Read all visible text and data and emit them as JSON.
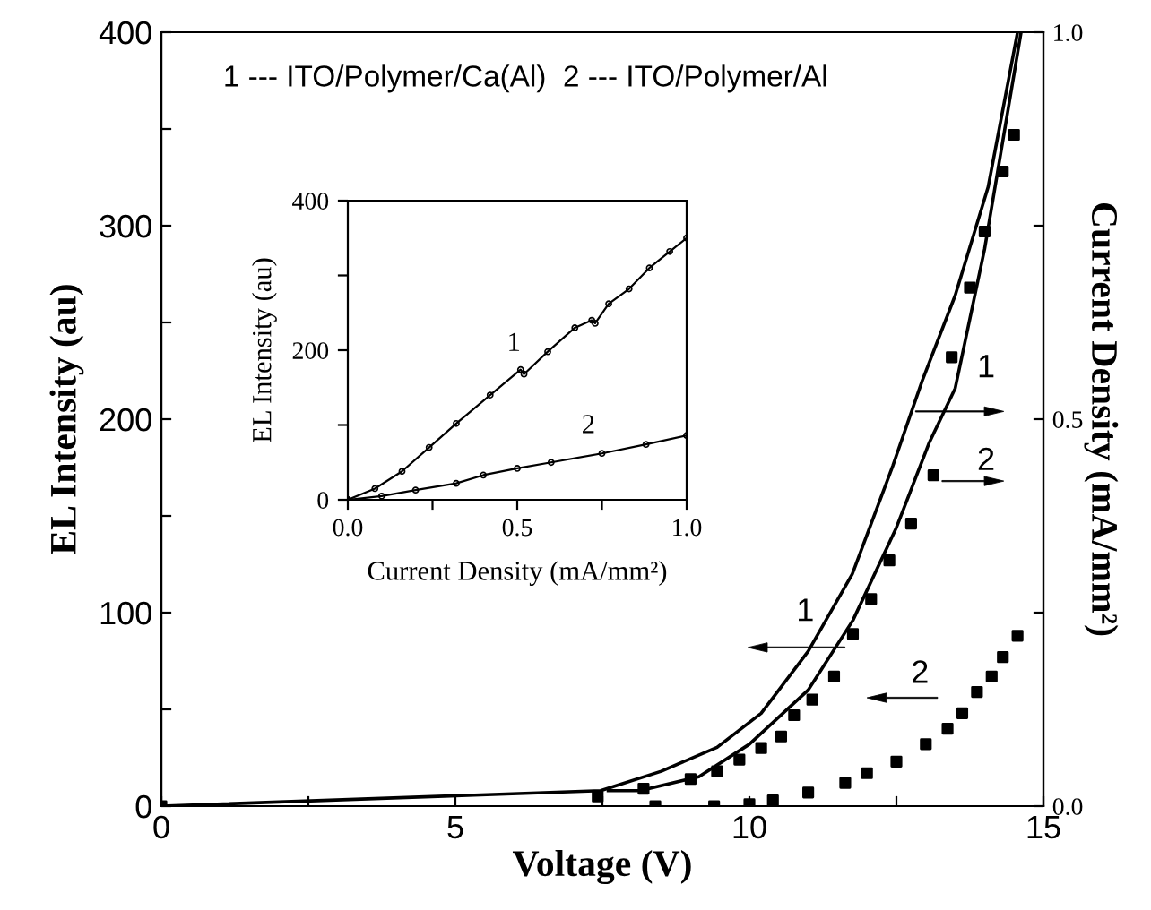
{
  "chart_data": [
    {
      "type": "line",
      "xlabel": "Voltage (V)",
      "ylabel": "EL Intensity (au)",
      "y2label": "Current Density (mA/mm²)",
      "xlim": [
        0,
        15
      ],
      "xticks": [
        0,
        {
          "value": 2.5,
          "label": null
        },
        5,
        {
          "value": 7.5,
          "label": null
        },
        10,
        {
          "value": 12.5,
          "label": null
        },
        15
      ],
      "ylim": [
        0,
        400
      ],
      "yticks": [
        0,
        {
          "value": 50,
          "label": null
        },
        100,
        {
          "value": 150,
          "label": null
        },
        200,
        {
          "value": 250,
          "label": null
        },
        300,
        {
          "value": 350,
          "label": null
        },
        400
      ],
      "y2lim": [
        0,
        1.0
      ],
      "y2ticks": [
        {
          "value": 0,
          "label": "0.0"
        },
        {
          "value": 0.25,
          "label": null
        },
        0.5,
        {
          "value": 0.75,
          "label": null
        },
        {
          "value": 1.0,
          "label": "1.0"
        }
      ],
      "series": [
        {
          "type": "line",
          "axis": "y2",
          "color": "#000000",
          "x": [
            0,
            7.47,
            8.5,
            9.45,
            10.2,
            11.0,
            11.75,
            12.44,
            12.94,
            13.5,
            14.06,
            14.56
          ],
          "values": [
            0,
            0.02,
            0.045,
            0.076,
            0.12,
            0.2,
            0.3,
            0.44,
            0.55,
            0.66,
            0.8,
            1.0
          ]
        },
        {
          "type": "line",
          "axis": "y2",
          "color": "#000000",
          "x": [
            7.6,
            8.14,
            9.14,
            10.0,
            11.0,
            11.76,
            12.5,
            13.06,
            13.5,
            14.0,
            14.62
          ],
          "values": [
            0.02,
            0.02,
            0.038,
            0.08,
            0.15,
            0.24,
            0.36,
            0.47,
            0.54,
            0.72,
            1.0
          ]
        },
        {
          "type": "scatter",
          "marker": "square",
          "color": "#000000",
          "x": [
            0,
            7.42,
            8.2,
            9.0,
            9.45,
            9.83,
            10.2,
            10.54,
            10.76,
            11.07,
            11.44,
            11.76,
            12.07,
            12.38,
            12.75,
            13.13,
            13.44,
            13.75,
            14.0,
            14.31,
            14.5
          ],
          "values": [
            0,
            5,
            9,
            14,
            18,
            24,
            30,
            36,
            47,
            55,
            67,
            89,
            107,
            127,
            146,
            171,
            232,
            268,
            297,
            328,
            347
          ]
        },
        {
          "type": "scatter",
          "marker": "square",
          "color": "#000000",
          "x": [
            8.4,
            9.4,
            10.0,
            10.4,
            11.0,
            11.63,
            12.0,
            12.5,
            13.0,
            13.37,
            13.62,
            13.87,
            14.12,
            14.31,
            14.56
          ],
          "values": [
            0,
            0,
            1,
            3,
            7,
            12,
            17,
            23,
            32,
            40,
            48,
            59,
            67,
            77,
            88
          ]
        }
      ],
      "annotations": [
        "1 --- ITO/Polymer/Ca(Al)  2 --- ITO/Polymer/Al",
        "1",
        "2",
        "1",
        "2"
      ]
    },
    {
      "type": "line",
      "xlabel": "Current Density (mA/mm²)",
      "ylabel": "EL Intensity (au)",
      "xlim": [
        0,
        1.0
      ],
      "xticks": [
        {
          "value": 0,
          "label": "0.0"
        },
        {
          "value": 0.25,
          "label": null
        },
        0.5,
        {
          "value": 0.75,
          "label": null
        },
        {
          "value": 1.0,
          "label": "1.0"
        }
      ],
      "ylim": [
        0,
        400
      ],
      "yticks": [
        0,
        {
          "value": 100,
          "label": null
        },
        200,
        {
          "value": 300,
          "label": null
        },
        400
      ],
      "series": [
        {
          "marker": "circle",
          "color": "#000000",
          "x": [
            0,
            0.08,
            0.16,
            0.24,
            0.32,
            0.42,
            0.51,
            0.52,
            0.59,
            0.67,
            0.72,
            0.73,
            0.77,
            0.83,
            0.89,
            0.95,
            1.0
          ],
          "values": [
            0,
            15,
            38,
            70,
            102,
            140,
            174,
            168,
            198,
            230,
            240,
            236,
            262,
            282,
            310,
            332,
            350
          ]
        },
        {
          "marker": "circle",
          "color": "#000000",
          "x": [
            0,
            0.1,
            0.2,
            0.32,
            0.4,
            0.5,
            0.6,
            0.75,
            0.88,
            1.0
          ],
          "values": [
            0,
            5,
            13,
            22,
            33,
            42,
            50,
            62,
            74,
            86
          ]
        }
      ],
      "annotations": [
        "1",
        "2"
      ]
    }
  ]
}
